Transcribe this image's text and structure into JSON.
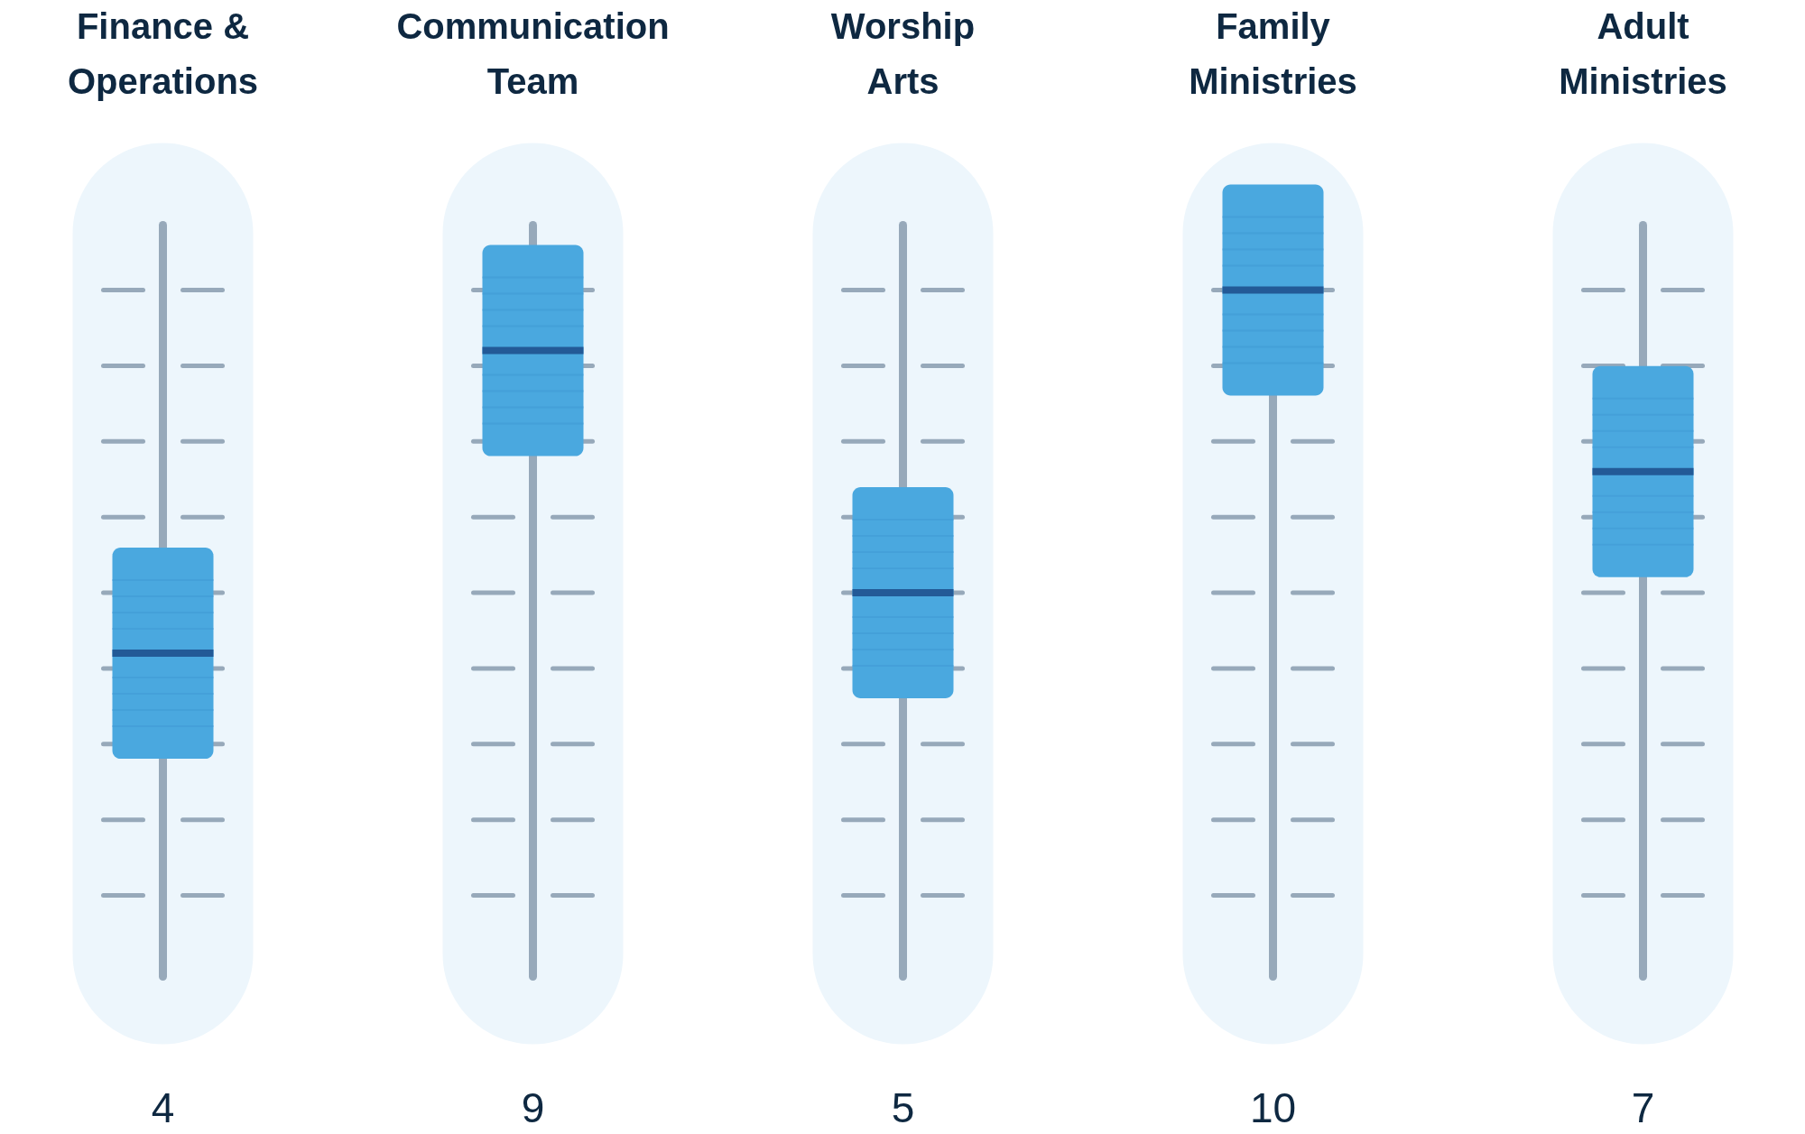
{
  "chart_data": {
    "type": "other",
    "categories": [
      "Finance & Operations",
      "Communication Team",
      "Worship Arts",
      "Family Ministries",
      "Adult Ministries"
    ],
    "values": [
      4,
      9,
      5,
      10,
      7
    ],
    "color": "#4aa8df",
    "data_labels": true
  }
}
